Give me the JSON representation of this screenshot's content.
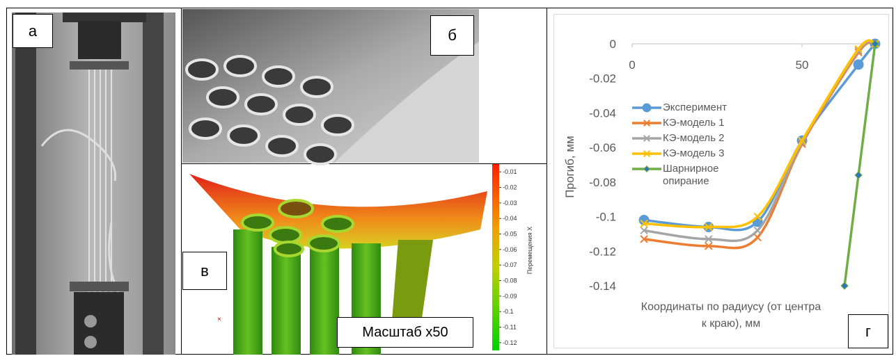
{
  "panel_labels": [
    "а",
    "б",
    "в",
    "г"
  ],
  "scale_label": "Масштаб х50",
  "colorbar": {
    "title": "Перемещения X",
    "lim": [
      -0.125,
      -0.005
    ],
    "ticks": [
      -0.01,
      -0.02,
      -0.03,
      -0.04,
      -0.05,
      -0.06,
      -0.07,
      -0.08,
      -0.09,
      -0.1,
      -0.11,
      -0.12
    ]
  },
  "chart_data": {
    "type": "line",
    "y_label": "Прогиб, мм",
    "x_label": "Координаты по радиусу (от центра к краю), мм",
    "xlim": [
      0,
      71.5
    ],
    "xticks": [
      0,
      50
    ],
    "ylim": [
      -0.14,
      0
    ],
    "yticks": [
      0,
      -0.02,
      -0.04,
      -0.06,
      -0.08,
      -0.1,
      -0.12,
      -0.14
    ],
    "smooth": true,
    "series": [
      {
        "name": "Эксперимент",
        "color": "#5b9bd5",
        "marker": "circle",
        "x": [
          3.5,
          22.5,
          36.9,
          50,
          66.6,
          71.5
        ],
        "values": [
          -0.102,
          -0.106,
          -0.103,
          -0.056,
          -0.012,
          0
        ]
      },
      {
        "name": "КЭ-модель 1",
        "color": "#ed7d31",
        "marker": "cross",
        "x": [
          3.5,
          22.5,
          36.9,
          50,
          66.6,
          71.5
        ],
        "values": [
          -0.113,
          -0.117,
          -0.112,
          -0.058,
          -0.005,
          0
        ]
      },
      {
        "name": "КЭ-модель 2",
        "color": "#a5a5a5",
        "marker": "cross",
        "x": [
          3.5,
          22.5,
          36.9,
          50,
          66.6,
          71.5
        ],
        "values": [
          -0.108,
          -0.113,
          -0.108,
          -0.057,
          -0.004,
          0
        ]
      },
      {
        "name": "КЭ-модель 3",
        "color": "#ffc000",
        "marker": "cross",
        "x": [
          3.5,
          22.5,
          36.9,
          50,
          66.6,
          71.5
        ],
        "values": [
          -0.104,
          -0.106,
          -0.1,
          -0.056,
          -0.003,
          0
        ]
      },
      {
        "name": "Шарнирное опирание",
        "color": "#70ad47",
        "marker": "diamond",
        "x": [
          62.5,
          66.6,
          71.5
        ],
        "values": [
          -0.14,
          -0.076,
          0
        ]
      }
    ]
  }
}
